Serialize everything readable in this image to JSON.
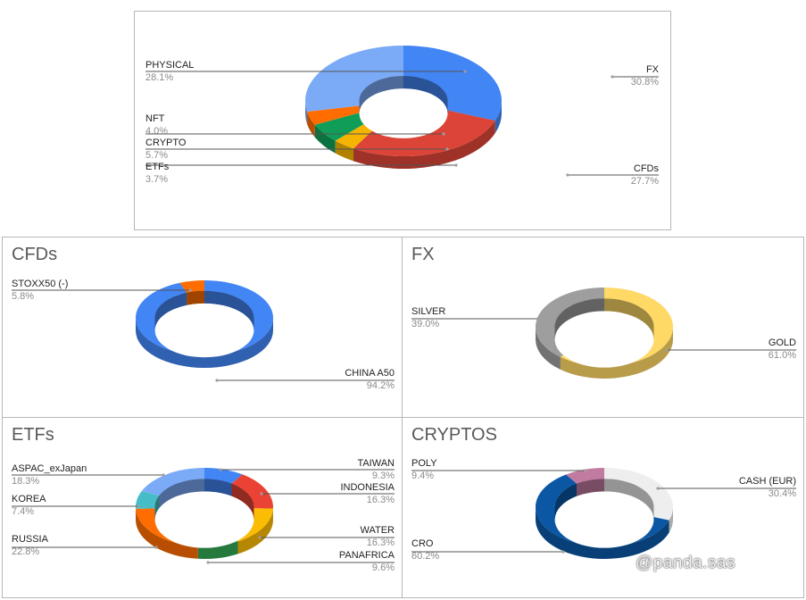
{
  "watermark": "@panda.sas",
  "chart_data": [
    {
      "id": "main",
      "type": "pie",
      "donut": true,
      "title": "",
      "slices": [
        {
          "label": "FX",
          "value": 30.8,
          "pct": "30.8%",
          "color": "#4285f4"
        },
        {
          "label": "CFDs",
          "value": 27.7,
          "pct": "27.7%",
          "color": "#db4437"
        },
        {
          "label": "ETFs",
          "value": 3.7,
          "pct": "3.7%",
          "color": "#f4b400"
        },
        {
          "label": "CRYPTO",
          "value": 5.7,
          "pct": "5.7%",
          "color": "#0f9d58"
        },
        {
          "label": "NFT",
          "value": 4.0,
          "pct": "4.0%",
          "color": "#ff6d00"
        },
        {
          "label": "PHYSICAL",
          "value": 28.1,
          "pct": "28.1%",
          "color": "#7baaf7"
        }
      ]
    },
    {
      "id": "cfds",
      "type": "pie",
      "donut": true,
      "title": "CFDs",
      "slices": [
        {
          "label": "CHINA A50",
          "value": 94.2,
          "pct": "94.2%",
          "color": "#4285f4"
        },
        {
          "label": "STOXX50 (-)",
          "value": 5.8,
          "pct": "5.8%",
          "color": "#ff6d00"
        }
      ]
    },
    {
      "id": "fx",
      "type": "pie",
      "donut": true,
      "title": "FX",
      "slices": [
        {
          "label": "GOLD",
          "value": 61.0,
          "pct": "61.0%",
          "color": "#ffd966"
        },
        {
          "label": "SILVER",
          "value": 39.0,
          "pct": "39.0%",
          "color": "#9e9e9e"
        }
      ]
    },
    {
      "id": "etfs",
      "type": "pie",
      "donut": true,
      "title": "ETFs",
      "slices": [
        {
          "label": "TAIWAN",
          "value": 9.3,
          "pct": "9.3%",
          "color": "#4285f4"
        },
        {
          "label": "INDONESIA",
          "value": 16.3,
          "pct": "16.3%",
          "color": "#ea4335"
        },
        {
          "label": "WATER",
          "value": 16.3,
          "pct": "16.3%",
          "color": "#fbbc04"
        },
        {
          "label": "PANAFRICA",
          "value": 9.6,
          "pct": "9.6%",
          "color": "#34a853"
        },
        {
          "label": "RUSSIA",
          "value": 22.8,
          "pct": "22.8%",
          "color": "#ff6d01"
        },
        {
          "label": "KOREA",
          "value": 7.4,
          "pct": "7.4%",
          "color": "#46bdc6"
        },
        {
          "label": "ASPAC_exJapan",
          "value": 18.3,
          "pct": "18.3%",
          "color": "#7baaf7"
        }
      ]
    },
    {
      "id": "cryptos",
      "type": "pie",
      "donut": true,
      "title": "CRYPTOS",
      "slices": [
        {
          "label": "CASH (EUR)",
          "value": 30.4,
          "pct": "30.4%",
          "color": "#eeeeee"
        },
        {
          "label": "CRO",
          "value": 60.2,
          "pct": "60.2%",
          "color": "#0b57a4"
        },
        {
          "label": "POLY",
          "value": 9.4,
          "pct": "9.4%",
          "color": "#c27ba0"
        }
      ]
    }
  ]
}
